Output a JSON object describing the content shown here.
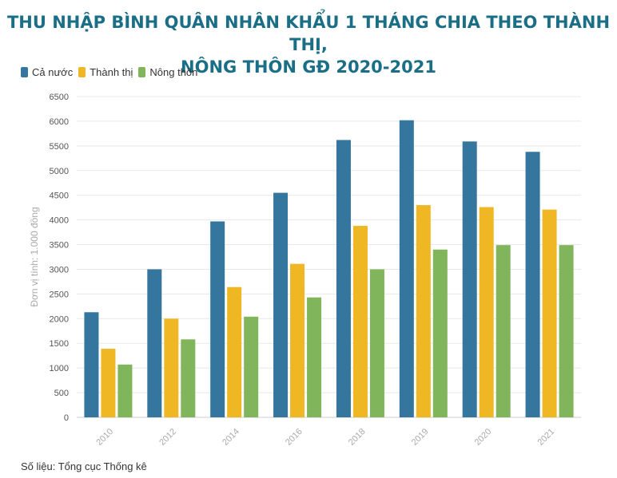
{
  "title_line1": "THU NHẬP BÌNH QUÂN NHÂN KHẨU 1 THÁNG CHIA THEO THÀNH THỊ,",
  "title_line2": "NÔNG THÔN GĐ 2020-2021",
  "source": "Số liệu: Tổng cục Thống kê",
  "colors": {
    "ca_nuoc": "#35769f",
    "thanh_thi": "#efb724",
    "nong_thon": "#80b55b"
  },
  "chart_data": {
    "type": "bar",
    "title": "THU NHẬP BÌNH QUÂN NHÂN KHẨU 1 THÁNG CHIA THEO THÀNH THỊ, NÔNG THÔN GĐ 2020-2021",
    "ylabel": "Đơn vị tính: 1.000 đồng",
    "xlabel": "",
    "categories": [
      "2010",
      "2012",
      "2014",
      "2016",
      "2018",
      "2019",
      "2020",
      "2021"
    ],
    "series": [
      {
        "name": "Cả nước",
        "color": "#35769f",
        "values": [
          2130,
          3000,
          3970,
          4550,
          5620,
          6020,
          5590,
          5380
        ]
      },
      {
        "name": "Thành thị",
        "color": "#efb724",
        "values": [
          1390,
          2000,
          2640,
          3110,
          3880,
          4300,
          4260,
          4210
        ]
      },
      {
        "name": "Nông thôn",
        "color": "#80b55b",
        "values": [
          1070,
          1580,
          2040,
          2430,
          3000,
          3400,
          3490,
          3490
        ]
      }
    ],
    "ylim": [
      0,
      6500
    ],
    "yticks": [
      0,
      500,
      1000,
      1500,
      2000,
      2500,
      3000,
      3500,
      4000,
      4500,
      5000,
      5500,
      6000,
      6500
    ],
    "grid": true,
    "legend": "top-left"
  }
}
